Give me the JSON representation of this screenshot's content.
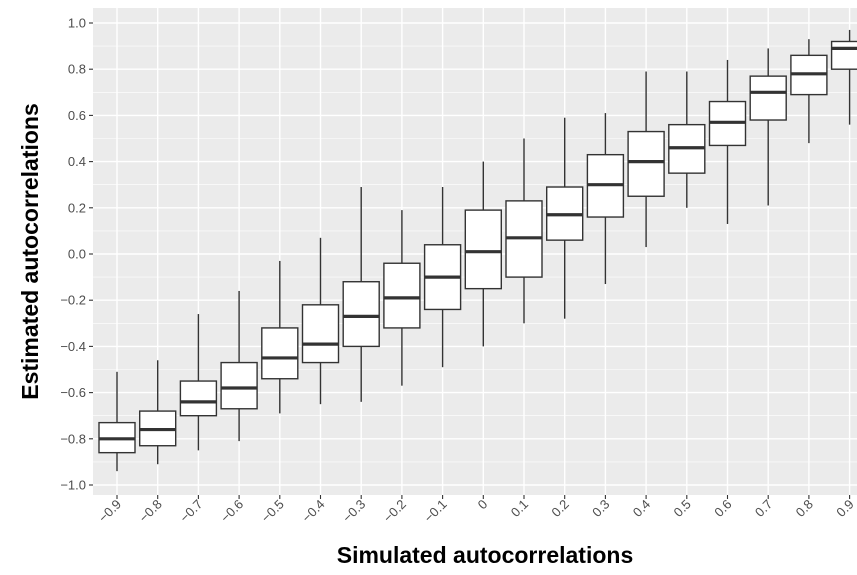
{
  "chart_data": {
    "type": "box",
    "xlabel": "Simulated autocorrelations",
    "ylabel": "Estimated autocorrelations",
    "ylim": [
      -1.0,
      1.0
    ],
    "yticks": [
      -1.0,
      -0.8,
      -0.6,
      -0.4,
      -0.2,
      0.0,
      0.2,
      0.4,
      0.6,
      0.8,
      1.0
    ],
    "y_tick_labels": [
      "−1.0",
      "−0.8",
      "−0.6",
      "−0.4",
      "−0.2",
      "0.0",
      "0.2",
      "0.4",
      "0.6",
      "0.8",
      "1.0"
    ],
    "categories": [
      "−0.9",
      "−0.8",
      "−0.7",
      "−0.6",
      "−0.5",
      "−0.4",
      "−0.3",
      "−0.2",
      "−0.1",
      "0",
      "0.1",
      "0.2",
      "0.3",
      "0.4",
      "0.5",
      "0.6",
      "0.7",
      "0.8",
      "0.9"
    ],
    "boxes": [
      {
        "min": -0.94,
        "q1": -0.86,
        "median": -0.8,
        "q3": -0.73,
        "max": -0.51
      },
      {
        "min": -0.91,
        "q1": -0.83,
        "median": -0.76,
        "q3": -0.68,
        "max": -0.46
      },
      {
        "min": -0.85,
        "q1": -0.7,
        "median": -0.64,
        "q3": -0.55,
        "max": -0.26
      },
      {
        "min": -0.81,
        "q1": -0.67,
        "median": -0.58,
        "q3": -0.47,
        "max": -0.16
      },
      {
        "min": -0.69,
        "q1": -0.54,
        "median": -0.45,
        "q3": -0.32,
        "max": -0.03
      },
      {
        "min": -0.65,
        "q1": -0.47,
        "median": -0.39,
        "q3": -0.22,
        "max": 0.07
      },
      {
        "min": -0.64,
        "q1": -0.4,
        "median": -0.27,
        "q3": -0.12,
        "max": 0.29
      },
      {
        "min": -0.57,
        "q1": -0.32,
        "median": -0.19,
        "q3": -0.04,
        "max": 0.19
      },
      {
        "min": -0.49,
        "q1": -0.24,
        "median": -0.1,
        "q3": 0.04,
        "max": 0.29
      },
      {
        "min": -0.4,
        "q1": -0.15,
        "median": 0.01,
        "q3": 0.19,
        "max": 0.4
      },
      {
        "min": -0.3,
        "q1": -0.1,
        "median": 0.07,
        "q3": 0.23,
        "max": 0.5
      },
      {
        "min": -0.28,
        "q1": 0.06,
        "median": 0.17,
        "q3": 0.29,
        "max": 0.59
      },
      {
        "min": -0.13,
        "q1": 0.16,
        "median": 0.3,
        "q3": 0.43,
        "max": 0.61
      },
      {
        "min": 0.03,
        "q1": 0.25,
        "median": 0.4,
        "q3": 0.53,
        "max": 0.79
      },
      {
        "min": 0.2,
        "q1": 0.35,
        "median": 0.46,
        "q3": 0.56,
        "max": 0.79
      },
      {
        "min": 0.13,
        "q1": 0.47,
        "median": 0.57,
        "q3": 0.66,
        "max": 0.84
      },
      {
        "min": 0.21,
        "q1": 0.58,
        "median": 0.7,
        "q3": 0.77,
        "max": 0.89
      },
      {
        "min": 0.48,
        "q1": 0.69,
        "median": 0.78,
        "q3": 0.86,
        "max": 0.93
      },
      {
        "min": 0.56,
        "q1": 0.8,
        "median": 0.89,
        "q3": 0.92,
        "max": 0.97
      }
    ],
    "grid": true,
    "legend": "none",
    "colors": {
      "panel_background": "#ebebeb",
      "grid_major": "#ffffff",
      "box_fill": "#ffffff",
      "box_line": "#333333",
      "tick_label": "#4d4d4d",
      "axis_title": "#000000"
    }
  }
}
